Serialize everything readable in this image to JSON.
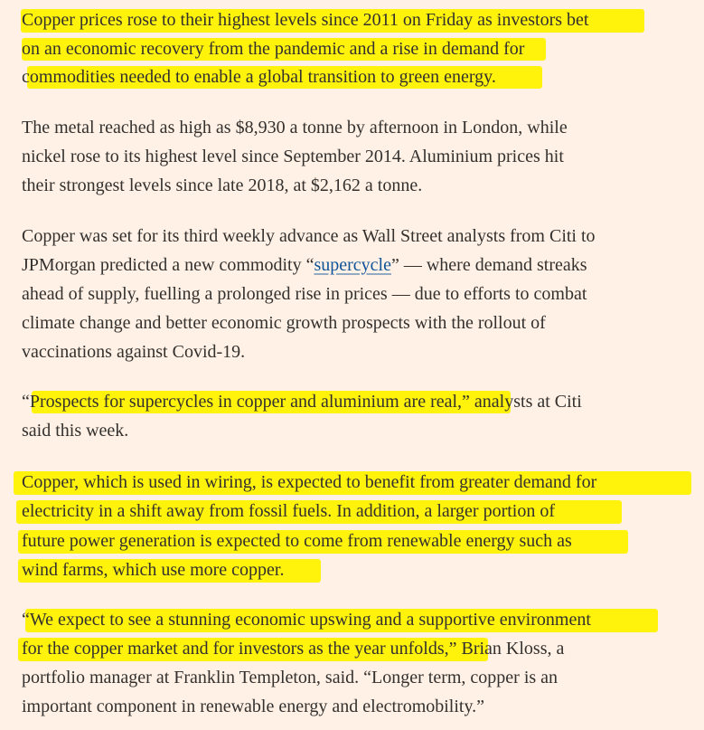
{
  "article": {
    "p1": [
      "Copper prices rose to their highest levels since 2011 on Friday as investors bet",
      "on an economic recovery from the pandemic and a rise in demand for",
      "commodities needed to enable a global transition to green energy."
    ],
    "p2": [
      "The metal reached as high as $8,930 a tonne by afternoon in London, while",
      "nickel rose to its highest level since September 2014. Aluminium prices hit",
      "their strongest levels since late 2018, at $2,162 a tonne."
    ],
    "p3": {
      "line1": "Copper was set for its third weekly advance as Wall Street analysts from Citi to",
      "line2_before": "JPMorgan predicted a new commodity “",
      "link_text": "supercycle",
      "line2_after": "” — where demand streaks",
      "line3": "ahead of supply, fuelling a prolonged rise in prices — due to efforts to combat",
      "line4": "climate change and better economic growth prospects with the rollout of",
      "line5": "vaccinations against Covid-19."
    },
    "p4": [
      "“Prospects for supercycles in copper and aluminium are real,” analysts at Citi",
      "said this week."
    ],
    "p5": [
      "Copper, which is used in wiring, is expected to benefit from greater demand for",
      "electricity in a shift away from fossil fuels. In addition, a larger portion of",
      "future power generation is expected to come from renewable energy such as",
      "wind farms, which use more copper."
    ],
    "p6": [
      "“We expect to see a stunning economic upswing and a supportive environment",
      "for the copper market and for investors as the year unfolds,” Brian Kloss, a",
      "portfolio manager at Franklin Templeton, said. “Longer term, copper is an",
      "important component in renewable energy and electromobility.”"
    ]
  }
}
